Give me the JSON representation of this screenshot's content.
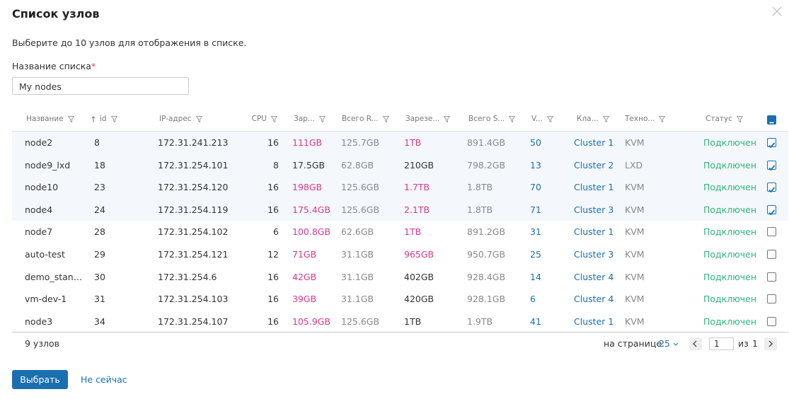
{
  "dialog": {
    "title": "Список узлов",
    "description": "Выберите до 10 узлов для отображения в списке.",
    "name_label": "Название списка",
    "required_mark": "*",
    "name_value": "My nodes"
  },
  "table": {
    "columns": [
      "Название",
      "id",
      "IP-адрес",
      "CPU",
      "Зар...",
      "Всего R...",
      "Зарезе...",
      "Всего S...",
      "V...",
      "Кла...",
      "Техно...",
      "Статус"
    ],
    "rows": [
      {
        "cells": [
          "node2",
          8,
          "172.31.241.213",
          16,
          "111GB",
          "125.7GB",
          "1TB",
          "891.4GB",
          50,
          "Cluster 1",
          "KVM",
          "Подключен"
        ],
        "selected": true,
        "ram_alert": true,
        "storage_alert": true
      },
      {
        "cells": [
          "node9_lxd",
          18,
          "172.31.254.101",
          8,
          "17.5GB",
          "62.8GB",
          "210GB",
          "798.2GB",
          13,
          "Cluster 2",
          "LXD",
          "Подключен"
        ],
        "selected": true,
        "ram_alert": false,
        "storage_alert": false
      },
      {
        "cells": [
          "node10",
          23,
          "172.31.254.120",
          16,
          "198GB",
          "125.6GB",
          "1.7TB",
          "1.8TB",
          70,
          "Cluster 1",
          "KVM",
          "Подключен"
        ],
        "selected": true,
        "ram_alert": true,
        "storage_alert": true
      },
      {
        "cells": [
          "node4",
          24,
          "172.31.254.119",
          16,
          "175.4GB",
          "125.6GB",
          "2.1TB",
          "1.8TB",
          71,
          "Cluster 3",
          "KVM",
          "Подключен"
        ],
        "selected": true,
        "ram_alert": true,
        "storage_alert": true
      },
      {
        "cells": [
          "node7",
          28,
          "172.31.254.102",
          6,
          "100.8GB",
          "62.6GB",
          "1TB",
          "891.2GB",
          31,
          "Cluster 1",
          "KVM",
          "Подключен"
        ],
        "selected": false,
        "ram_alert": true,
        "storage_alert": true
      },
      {
        "cells": [
          "auto-test",
          29,
          "172.31.254.121",
          12,
          "71GB",
          "31.1GB",
          "965GB",
          "950.7GB",
          25,
          "Cluster 3",
          "KVM",
          "Подключен"
        ],
        "selected": false,
        "ram_alert": true,
        "storage_alert": true
      },
      {
        "cells": [
          "demo_stan…",
          30,
          "172.31.254.6",
          16,
          "42GB",
          "31.1GB",
          "402GB",
          "928.4GB",
          14,
          "Cluster 4",
          "KVM",
          "Подключен"
        ],
        "selected": false,
        "ram_alert": true,
        "storage_alert": false
      },
      {
        "cells": [
          "vm-dev-1",
          31,
          "172.31.254.103",
          16,
          "39GB",
          "31.1GB",
          "420GB",
          "928.1GB",
          6,
          "Cluster 4",
          "KVM",
          "Подключен"
        ],
        "selected": false,
        "ram_alert": true,
        "storage_alert": false
      },
      {
        "cells": [
          "node3",
          34,
          "172.31.254.107",
          16,
          "105.9GB",
          "125.6GB",
          "1TB",
          "1.9TB",
          41,
          "Cluster 1",
          "KVM",
          "Подключен"
        ],
        "selected": false,
        "ram_alert": true,
        "storage_alert": false
      }
    ]
  },
  "footer": {
    "total": "9 узлов",
    "per_page_label": "на странице:",
    "per_page": 25,
    "page": 1,
    "of_label": "из",
    "pages": 1
  },
  "buttons": {
    "primary": "Выбрать",
    "secondary": "Не сейчас"
  }
}
